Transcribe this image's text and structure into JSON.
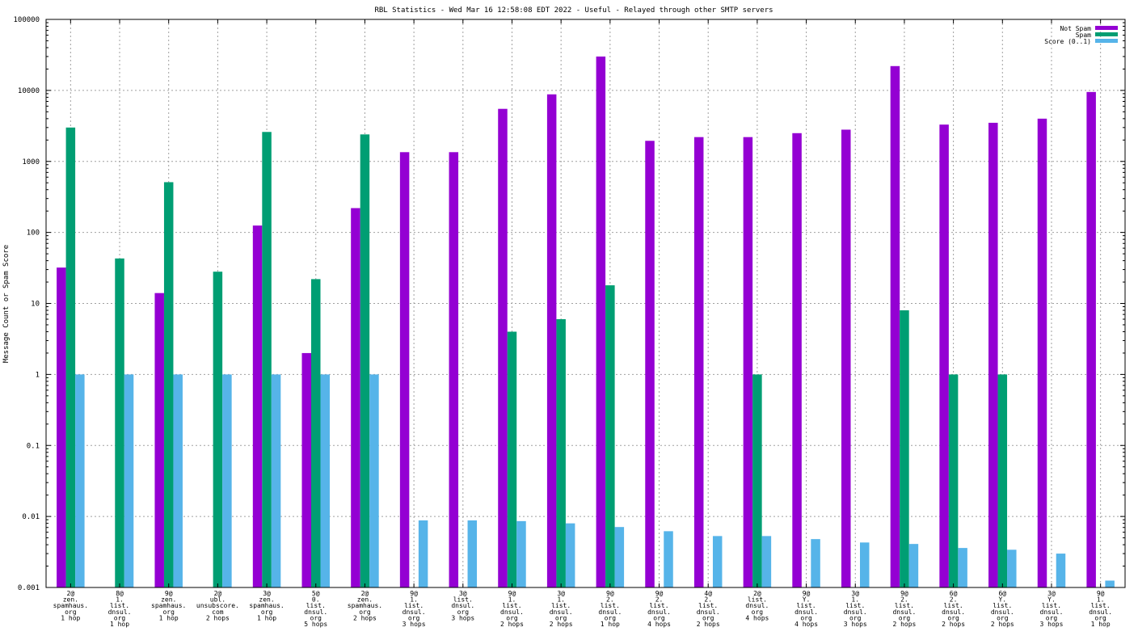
{
  "chart_data": {
    "type": "bar",
    "title": "RBL Statistics - Wed Mar 16 12:58:08 EDT 2022 - Useful - Relayed through other SMTP servers",
    "xlabel": "",
    "ylabel": "Message Count or Spam Score",
    "yscale": "log",
    "ylim": [
      0.001,
      100000
    ],
    "yticks": [
      "0.001",
      "0.01",
      "0.1",
      "1",
      "10",
      "100",
      "1000",
      "10000",
      "100000"
    ],
    "grid": true,
    "legend_position": "top-right",
    "categories": [
      [
        "2@",
        "zen.",
        "spamhaus.",
        "org",
        "1 hop"
      ],
      [
        "8@",
        "1.",
        "list.",
        "dnsul.",
        "org",
        "1 hop"
      ],
      [
        "9@",
        "zen.",
        "spamhaus.",
        "org",
        "1 hop"
      ],
      [
        "2@",
        "ubl.",
        "unsubscore.",
        "com",
        "2 hops"
      ],
      [
        "3@",
        "zen.",
        "spamhaus.",
        "org",
        "1 hop"
      ],
      [
        "5@",
        "0.",
        "list.",
        "dnsul.",
        "org",
        "5 hops"
      ],
      [
        "2@",
        "zen.",
        "spamhaus.",
        "org",
        "2 hops"
      ],
      [
        "9@",
        "1.",
        "list.",
        "dnsul.",
        "org",
        "3 hops"
      ],
      [
        "3@",
        "list.",
        "dnsul.",
        "org",
        "3 hops"
      ],
      [
        "9@",
        "1.",
        "list.",
        "dnsul.",
        "org",
        "2 hops"
      ],
      [
        "3@",
        "1.",
        "list.",
        "dnsul.",
        "org",
        "2 hops"
      ],
      [
        "9@",
        "2.",
        "list.",
        "dnsul.",
        "org",
        "1 hop"
      ],
      [
        "9@",
        "2.",
        "list.",
        "dnsul.",
        "org",
        "4 hops"
      ],
      [
        "4@",
        "2.",
        "list.",
        "dnsul.",
        "org",
        "2 hops"
      ],
      [
        "2@",
        "list.",
        "dnsul.",
        "org",
        "4 hops"
      ],
      [
        "9@",
        "Y.",
        "list.",
        "dnsul.",
        "org",
        "4 hops"
      ],
      [
        "3@",
        "1.",
        "list.",
        "dnsul.",
        "org",
        "3 hops"
      ],
      [
        "9@",
        "2.",
        "list.",
        "dnsul.",
        "org",
        "2 hops"
      ],
      [
        "6@",
        "2.",
        "list.",
        "dnsul.",
        "org",
        "2 hops"
      ],
      [
        "6@",
        "Y.",
        "list.",
        "dnsul.",
        "org",
        "2 hops"
      ],
      [
        "3@",
        "Y.",
        "list.",
        "dnsul.",
        "org",
        "3 hops"
      ],
      [
        "9@",
        "1.",
        "list.",
        "dnsul.",
        "org",
        "1 hop"
      ]
    ],
    "series": [
      {
        "name": "Not Spam",
        "color": "#9400d3",
        "values": [
          32,
          null,
          14,
          null,
          125,
          2,
          220,
          1350,
          1350,
          5500,
          8800,
          30000,
          1950,
          2200,
          2200,
          2500,
          2800,
          22000,
          3300,
          3500,
          4000,
          9500
        ]
      },
      {
        "name": "Spam",
        "color": "#009e73",
        "values": [
          3000,
          43,
          510,
          28,
          2600,
          22,
          2400,
          null,
          null,
          4,
          6,
          18,
          null,
          null,
          1,
          null,
          null,
          8,
          1,
          1,
          null,
          null
        ]
      },
      {
        "name": "Score (0..1)",
        "color": "#56b4e9",
        "values": [
          1,
          1,
          1,
          1,
          1,
          1,
          1,
          0.0088,
          0.0088,
          0.0086,
          0.008,
          0.0071,
          0.0062,
          0.0053,
          0.0053,
          0.0048,
          0.0043,
          0.0041,
          0.0036,
          0.0034,
          0.003,
          0.00125
        ]
      }
    ]
  }
}
